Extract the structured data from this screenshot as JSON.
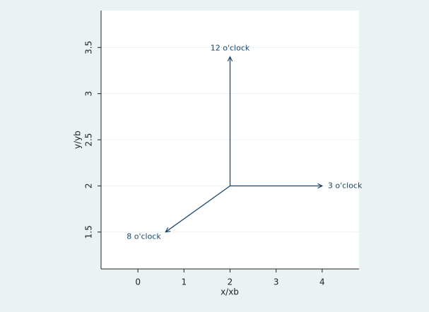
{
  "chart_data": {
    "type": "arrow",
    "xlabel": "x/xb",
    "ylabel": "y/yb",
    "xlim": [
      -0.8,
      4.8
    ],
    "xticks": [
      0,
      1,
      2,
      3,
      4
    ],
    "ylim": [
      1.1,
      3.9
    ],
    "yticks": [
      1.5,
      2,
      2.5,
      3,
      3.5
    ],
    "grid": true,
    "color": "#1a476f",
    "arrows": [
      {
        "label": "12 o'clock",
        "x": [
          2,
          2
        ],
        "y": [
          2,
          3.4
        ]
      },
      {
        "label": "3 o'clock",
        "x": [
          2,
          4
        ],
        "y": [
          2,
          2
        ]
      },
      {
        "label": "8 o'clock",
        "x": [
          2,
          0.6
        ],
        "y": [
          2,
          1.5
        ]
      }
    ]
  }
}
